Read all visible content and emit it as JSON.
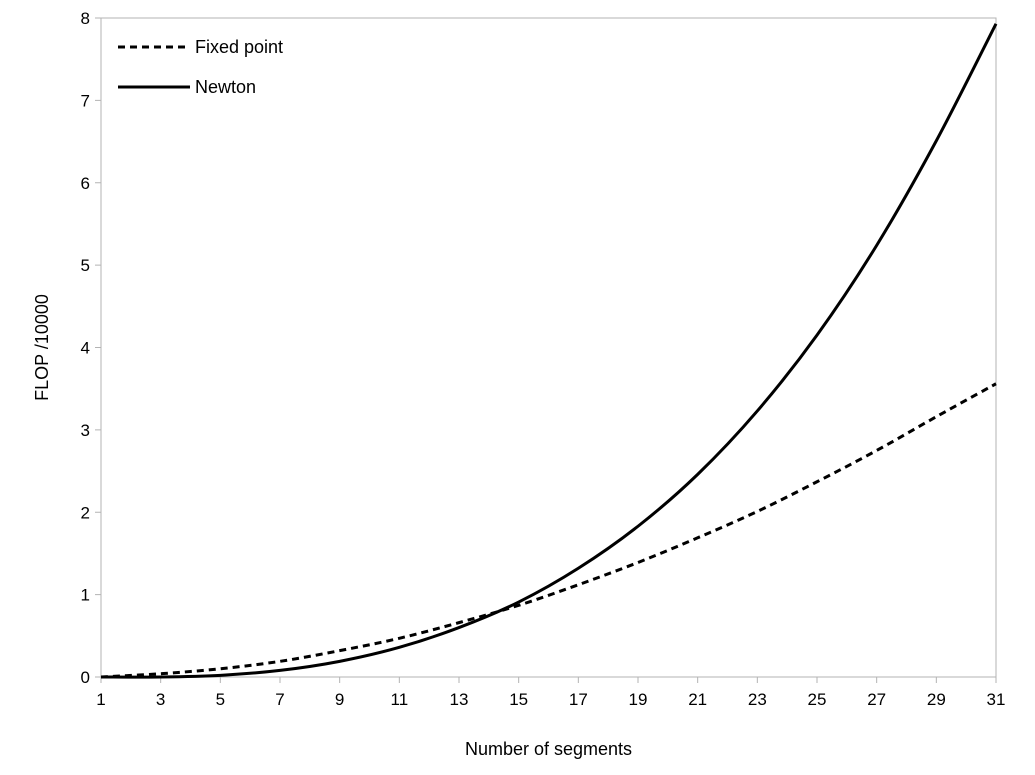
{
  "chart_data": {
    "type": "line",
    "xlabel": "Number of segments",
    "ylabel": "FLOP /10000",
    "xlim": [
      1,
      31
    ],
    "ylim": [
      0,
      8
    ],
    "x_ticks": [
      1,
      3,
      5,
      7,
      9,
      11,
      13,
      15,
      17,
      19,
      21,
      23,
      25,
      27,
      29,
      31
    ],
    "y_ticks": [
      0,
      1,
      2,
      3,
      4,
      5,
      6,
      7,
      8
    ],
    "grid": false,
    "legend_position": "top-left",
    "x": [
      1,
      3,
      5,
      7,
      9,
      11,
      13,
      15,
      17,
      19,
      21,
      23,
      25,
      27,
      29,
      31
    ],
    "series": [
      {
        "name": "Fixed point",
        "style": "dashed",
        "color": "#000000",
        "values": [
          0.0,
          0.04,
          0.1,
          0.19,
          0.32,
          0.47,
          0.66,
          0.87,
          1.12,
          1.39,
          1.69,
          2.01,
          2.37,
          2.75,
          3.16,
          3.56
        ]
      },
      {
        "name": "Newton",
        "style": "solid",
        "color": "#000000",
        "values": [
          0.0,
          0.0,
          0.02,
          0.08,
          0.19,
          0.36,
          0.6,
          0.91,
          1.32,
          1.83,
          2.46,
          3.23,
          4.15,
          5.24,
          6.51,
          7.93
        ]
      }
    ]
  }
}
